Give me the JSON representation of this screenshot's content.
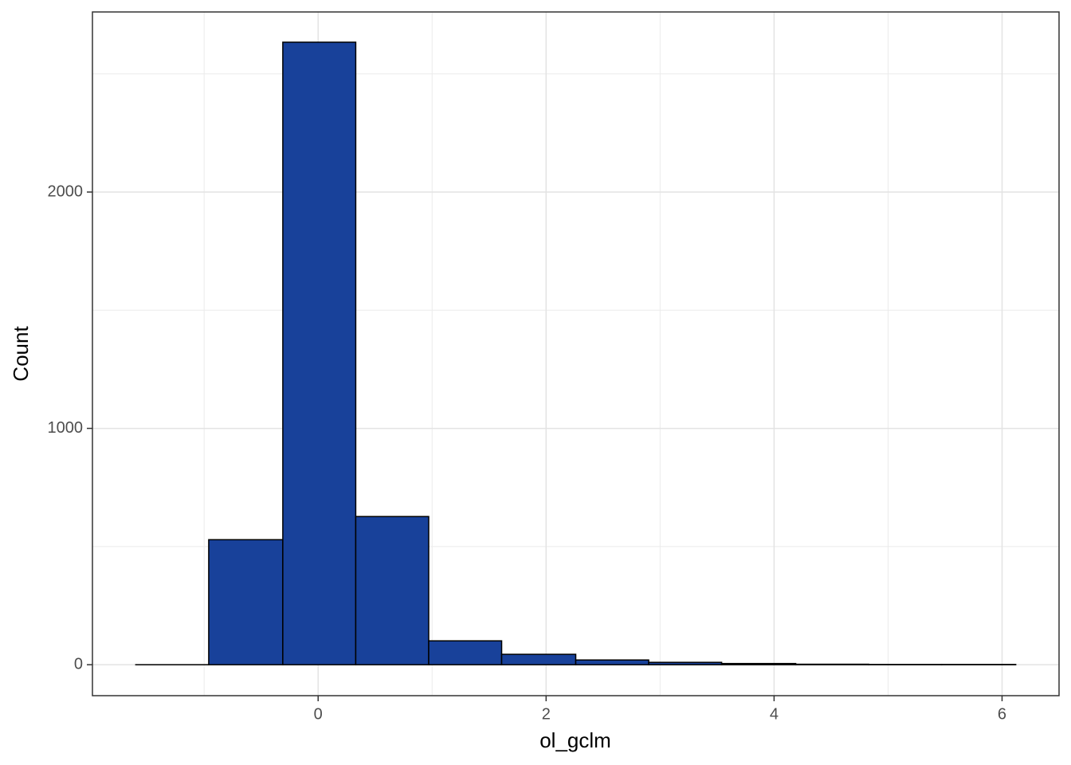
{
  "chart_data": {
    "type": "histogram",
    "x_label": "ol_gclm",
    "y_label": "Count",
    "bins": [
      -1.6,
      -0.96,
      -0.31,
      0.33,
      0.97,
      1.61,
      2.26,
      2.9,
      3.54,
      4.19,
      4.83,
      5.47,
      6.12
    ],
    "counts": [
      0,
      529,
      2634,
      627,
      101,
      44,
      20,
      10,
      5,
      2,
      1,
      1
    ],
    "color": "#18419a",
    "edge_color": "#000000",
    "xlim": [
      -1.98,
      6.5
    ],
    "ylim": [
      -131,
      2762
    ],
    "xticks": [
      0,
      2,
      4,
      6
    ],
    "yticks": [
      0,
      1000,
      2000
    ],
    "x_minor_grid": [
      -1,
      1,
      3,
      5
    ],
    "y_minor_grid": [
      500,
      1500,
      2500
    ],
    "grid": true
  }
}
